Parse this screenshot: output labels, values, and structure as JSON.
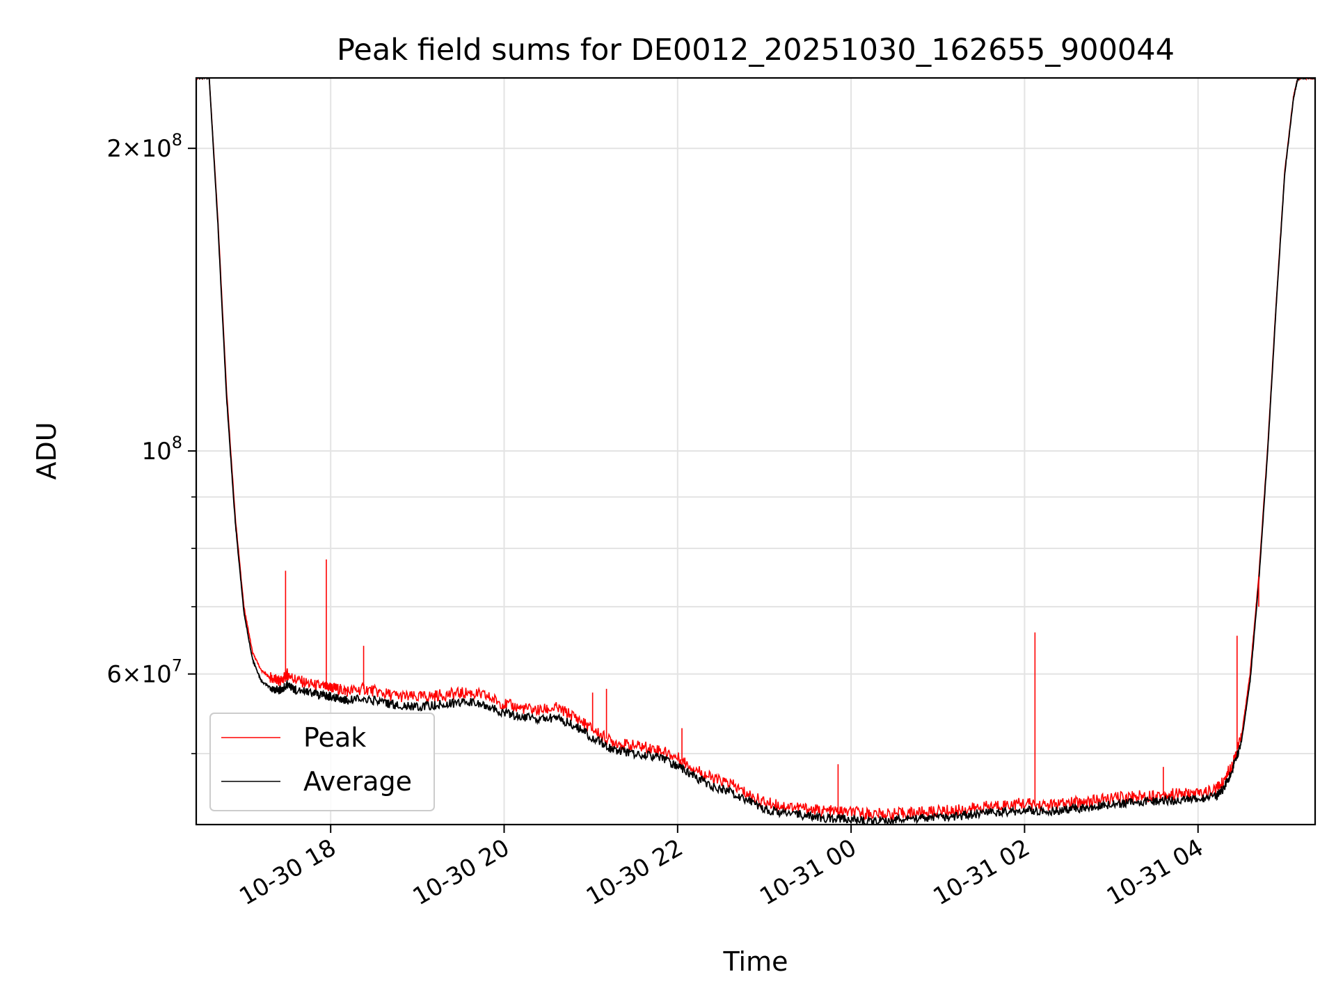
{
  "chart_data": {
    "type": "line",
    "title": "Peak field sums for DE0012_20251030_162655_900044",
    "xlabel": "Time",
    "ylabel": "ADU",
    "yscale": "log",
    "ylim": [
      42500000,
      235000000
    ],
    "xlim_hours": [
      16.45,
      29.35
    ],
    "x_unit": "hours since 2025-10-30 00:00",
    "x_ticks": [
      {
        "value": 18,
        "label": "10-30 18"
      },
      {
        "value": 20,
        "label": "10-30 20"
      },
      {
        "value": 22,
        "label": "10-30 22"
      },
      {
        "value": 24,
        "label": "10-31 00"
      },
      {
        "value": 26,
        "label": "10-31 02"
      },
      {
        "value": 28,
        "label": "10-31 04"
      }
    ],
    "y_major_ticks": [
      {
        "value": 60000000,
        "base": "6×10",
        "exp": "7"
      },
      {
        "value": 100000000,
        "base": "10",
        "exp": "8"
      },
      {
        "value": 200000000,
        "base": "2×10",
        "exp": "8"
      }
    ],
    "y_minor_ticks": [
      50000000,
      70000000,
      80000000,
      90000000
    ],
    "grid": true,
    "legend_position": "lower-left",
    "series": [
      {
        "name": "Peak",
        "color": "#ff0000",
        "x": [
          16.45,
          16.6,
          16.7,
          16.8,
          16.9,
          17.0,
          17.1,
          17.2,
          17.3,
          17.4,
          17.45,
          17.5,
          17.6,
          17.8,
          17.95,
          18.0,
          18.1,
          18.2,
          18.4,
          18.6,
          18.8,
          19.0,
          19.2,
          19.4,
          19.6,
          19.8,
          20.0,
          20.2,
          20.4,
          20.6,
          20.8,
          21.0,
          21.2,
          21.4,
          21.6,
          21.8,
          22.0,
          22.2,
          22.4,
          22.6,
          22.8,
          23.0,
          23.2,
          23.4,
          23.6,
          23.8,
          24.0,
          24.2,
          24.4,
          24.6,
          24.8,
          25.0,
          25.2,
          25.4,
          25.6,
          25.8,
          26.0,
          26.2,
          26.4,
          26.6,
          26.8,
          27.0,
          27.2,
          27.4,
          27.6,
          27.8,
          28.0,
          28.2,
          28.3,
          28.4,
          28.5,
          28.6,
          28.7,
          28.8,
          28.9,
          29.0,
          29.1,
          29.15,
          29.2,
          29.35
        ],
        "y": [
          235000000,
          235000000,
          170000000,
          115000000,
          86000000,
          70000000,
          63000000,
          60500000,
          59500000,
          59000000,
          59300000,
          60000000,
          59200000,
          58500000,
          58200000,
          58200000,
          57900000,
          57700000,
          58000000,
          57400000,
          57000000,
          56900000,
          57100000,
          57300000,
          57500000,
          57000000,
          56000000,
          55500000,
          55200000,
          55500000,
          54500000,
          53000000,
          51600000,
          51000000,
          50800000,
          50400000,
          49500000,
          48300000,
          47200000,
          46700000,
          45600000,
          44700000,
          44400000,
          44200000,
          43900000,
          43800000,
          43700000,
          43600000,
          43500000,
          43600000,
          43700000,
          43800000,
          43900000,
          44100000,
          44300000,
          44500000,
          44600000,
          44400000,
          44500000,
          44700000,
          44900000,
          45100000,
          45300000,
          45400000,
          45500000,
          45600000,
          45600000,
          46000000,
          47000000,
          49000000,
          52000000,
          60000000,
          75000000,
          100000000,
          140000000,
          190000000,
          225000000,
          235000000,
          235000000,
          235000000
        ]
      },
      {
        "name": "Average",
        "color": "#000000",
        "x": [
          16.45,
          16.6,
          16.7,
          16.8,
          16.9,
          17.0,
          17.1,
          17.2,
          17.3,
          17.4,
          17.45,
          17.5,
          17.6,
          17.8,
          17.95,
          18.0,
          18.1,
          18.2,
          18.4,
          18.6,
          18.8,
          19.0,
          19.2,
          19.4,
          19.6,
          19.8,
          20.0,
          20.2,
          20.4,
          20.6,
          20.8,
          21.0,
          21.2,
          21.4,
          21.6,
          21.8,
          22.0,
          22.2,
          22.4,
          22.6,
          22.8,
          23.0,
          23.2,
          23.4,
          23.6,
          23.8,
          24.0,
          24.2,
          24.4,
          24.6,
          24.8,
          25.0,
          25.2,
          25.4,
          25.6,
          25.8,
          26.0,
          26.2,
          26.4,
          26.6,
          26.8,
          27.0,
          27.2,
          27.4,
          27.6,
          27.8,
          28.0,
          28.2,
          28.3,
          28.4,
          28.5,
          28.6,
          28.7,
          28.8,
          28.9,
          29.0,
          29.1,
          29.15,
          29.2,
          29.35
        ],
        "y": [
          235000000,
          235000000,
          168000000,
          113000000,
          85000000,
          69000000,
          62000000,
          59000000,
          58200000,
          57800000,
          58000000,
          58600000,
          57900000,
          57300000,
          57000000,
          57000000,
          56700000,
          56500000,
          56700000,
          56200000,
          55800000,
          55700000,
          55900000,
          56100000,
          56300000,
          55800000,
          54900000,
          54400000,
          54100000,
          54300000,
          53400000,
          52000000,
          50700000,
          50100000,
          49900000,
          49500000,
          48600000,
          47400000,
          46400000,
          45900000,
          44900000,
          44000000,
          43700000,
          43500000,
          43200000,
          43100000,
          43000000,
          42900000,
          42900000,
          43000000,
          43100000,
          43200000,
          43300000,
          43500000,
          43700000,
          43800000,
          43900000,
          43800000,
          43900000,
          44100000,
          44300000,
          44500000,
          44700000,
          44800000,
          44900000,
          45000000,
          45000000,
          45300000,
          46200000,
          48300000,
          51300000,
          59000000,
          74000000,
          99000000,
          139000000,
          189000000,
          224000000,
          235000000,
          235000000,
          235000000
        ]
      }
    ],
    "peak_spikes": [
      {
        "x": 17.48,
        "y": 76000000
      },
      {
        "x": 17.95,
        "y": 78000000
      },
      {
        "x": 18.38,
        "y": 64000000
      },
      {
        "x": 21.02,
        "y": 57500000
      },
      {
        "x": 21.18,
        "y": 58000000
      },
      {
        "x": 22.05,
        "y": 53000000
      },
      {
        "x": 23.85,
        "y": 48800000
      },
      {
        "x": 26.12,
        "y": 66000000
      },
      {
        "x": 27.6,
        "y": 48500000
      },
      {
        "x": 28.45,
        "y": 65500000
      },
      {
        "x": 28.7,
        "y": 70000000
      }
    ]
  }
}
